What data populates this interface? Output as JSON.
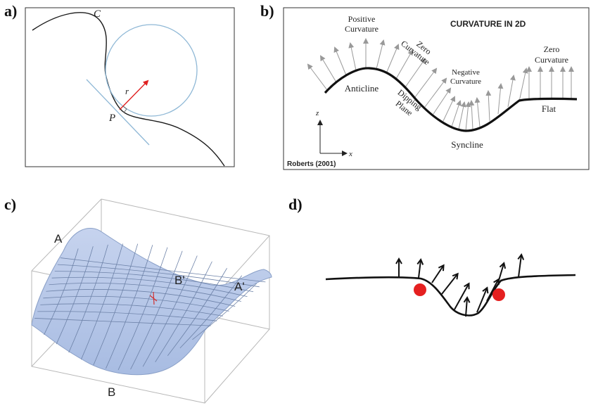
{
  "panels": {
    "a": {
      "label": "a)",
      "curve_label": "C",
      "radius_label": "r",
      "point_label": "P"
    },
    "b": {
      "label": "b)",
      "title": "CURVATURE IN 2D",
      "positive_line1": "Positive",
      "positive_line2": "Curvature",
      "zero1_line1": "Zero",
      "zero1_line2": "Curvature",
      "negative_line1": "Negative",
      "negative_line2": "Curvature",
      "zero2_line1": "Zero",
      "zero2_line2": "Curvature",
      "anticline": "Anticline",
      "dipping_line1": "Dipping",
      "dipping_line2": "Plane",
      "syncline": "Syncline",
      "flat": "Flat",
      "axis_z": "z",
      "axis_x": "x",
      "credit": "Roberts (2001)"
    },
    "c": {
      "label": "c)",
      "point_A": "A",
      "point_A_prime": "A'",
      "point_B": "B",
      "point_B_prime": "B'"
    },
    "d": {
      "label": "d)"
    }
  },
  "colors": {
    "curve": "#1a1a1a",
    "circle": "#8fb8d6",
    "tangent": "#8fb8d6",
    "radius": "#e02020",
    "arrows_b": "#999999",
    "surface": "#b6c6e6",
    "surface_grid": "#6d82a8",
    "box": "#b8b8b8",
    "dot": "#e52020"
  }
}
